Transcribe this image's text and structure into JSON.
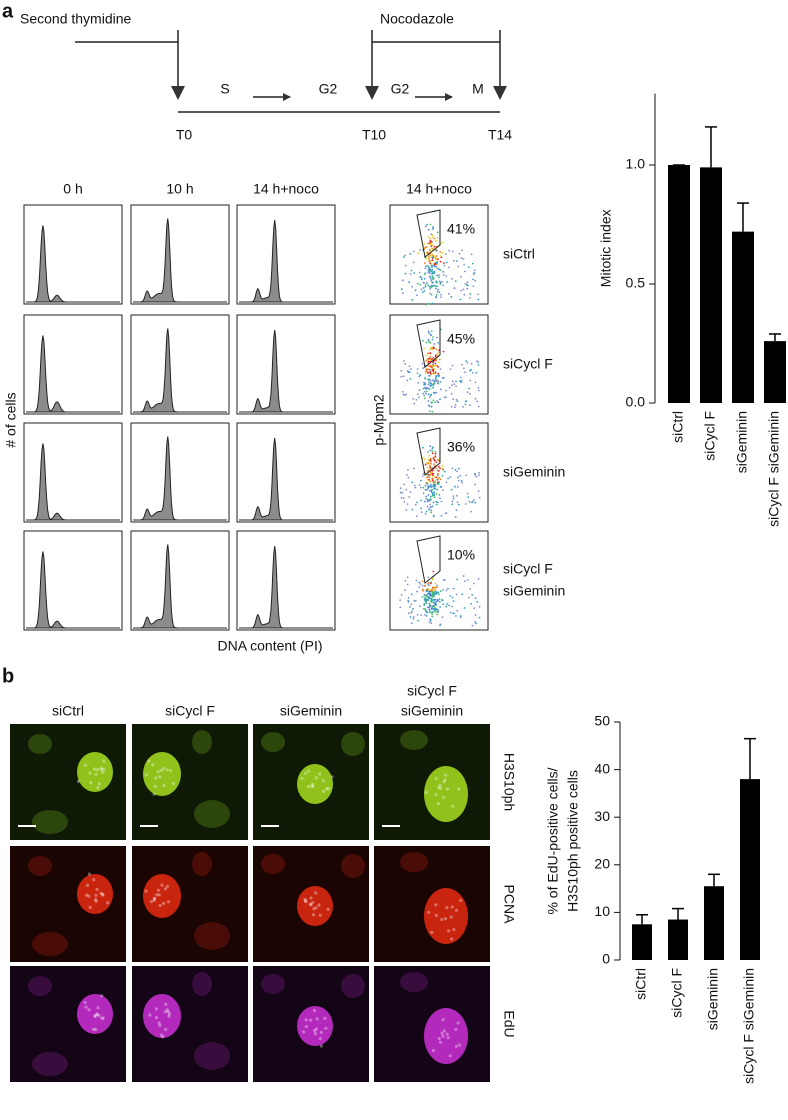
{
  "panel_a": {
    "label": "a",
    "timeline": {
      "treatments": [
        "Second thymidine",
        "Nocodazole"
      ],
      "phases": [
        "S",
        "G2",
        "G2",
        "M"
      ],
      "timepoints": [
        "T0",
        "T10",
        "T14"
      ]
    },
    "histogram_times": [
      "0 h",
      "10 h",
      "14 h+noco"
    ],
    "histogram_ylabel": "# of cells",
    "histogram_xlabel": "DNA content (PI)",
    "scatter_title": "14 h+noco",
    "scatter_ylabel": "p-Mpm2",
    "gates": [
      {
        "percent": "41%",
        "condition": [
          "siCtrl"
        ]
      },
      {
        "percent": "45%",
        "condition": [
          "siCycl F"
        ]
      },
      {
        "percent": "36%",
        "condition": [
          "siGeminin"
        ]
      },
      {
        "percent": "10%",
        "condition": [
          "siCycl F",
          "siGeminin"
        ]
      }
    ]
  },
  "panel_b": {
    "label": "b",
    "conditions": [
      [
        "siCtrl"
      ],
      [
        "siCycl F"
      ],
      [
        "siGeminin"
      ],
      [
        "siCycl F",
        "siGeminin"
      ]
    ],
    "stains": [
      "H3S10ph",
      "PCNA",
      "EdU"
    ]
  },
  "chart_data": [
    {
      "type": "bar",
      "ylabel": [
        "Mitotic index"
      ],
      "categories": [
        "siCtrl",
        "siCycl F",
        "siGeminin",
        "siCycl F siGeminin"
      ],
      "values": [
        1.0,
        0.99,
        0.72,
        0.26
      ],
      "errors": [
        0,
        0.17,
        0.12,
        0.03
      ],
      "color": "#000000",
      "ylim": [
        0,
        1.3
      ],
      "yticks": [
        {
          "value": 0,
          "label": "0.0"
        },
        {
          "value": 0.5,
          "label": "0.5"
        },
        {
          "value": 1,
          "label": "1.0"
        }
      ]
    },
    {
      "type": "bar",
      "ylabel": [
        "% of EdU-positive cells/",
        "H3S10ph positive cells"
      ],
      "categories": [
        "siCtrl",
        "siCycl F",
        "siGeminin",
        "siCycl F siGeminin"
      ],
      "values": [
        7.5,
        8.5,
        15.5,
        38
      ],
      "errors": [
        2,
        2.3,
        2.5,
        8.5
      ],
      "color": "#000000",
      "ylim": [
        0,
        50
      ],
      "yticks": [
        0,
        10,
        20,
        30,
        40,
        50
      ]
    }
  ]
}
